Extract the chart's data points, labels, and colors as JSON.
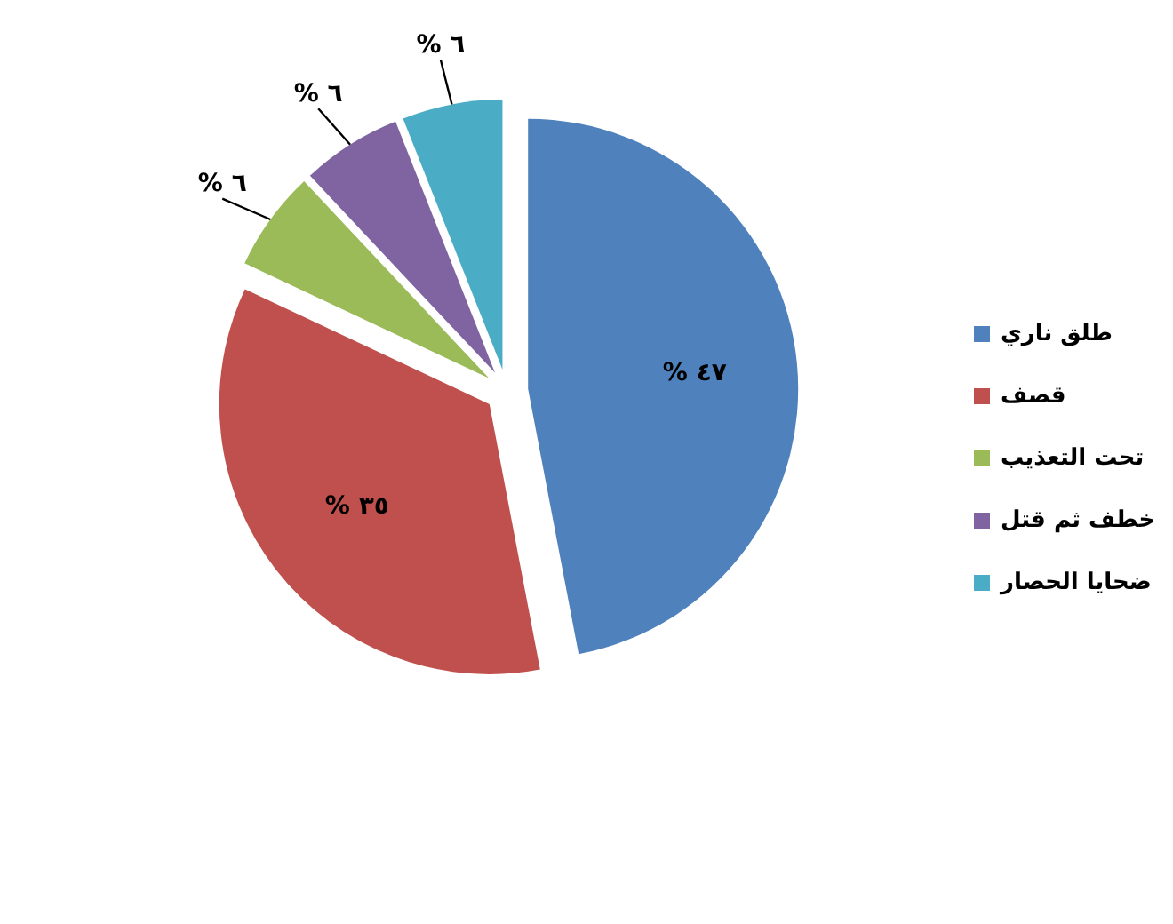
{
  "chart_data": {
    "type": "pie",
    "categories": [
      "طلق ناري",
      "قصف",
      "تحت التعذيب",
      "خطف ثم قتل",
      "ضحايا الحصار"
    ],
    "values": [
      47,
      35,
      6,
      6,
      6
    ],
    "colors": [
      "#4f81bd",
      "#c0504d",
      "#9bbb59",
      "#8064a2",
      "#4bacc6"
    ],
    "value_labels": [
      "% ٤٧",
      "% ٣٥",
      "% ٦",
      "% ٦",
      "% ٦"
    ],
    "legend": "right"
  }
}
